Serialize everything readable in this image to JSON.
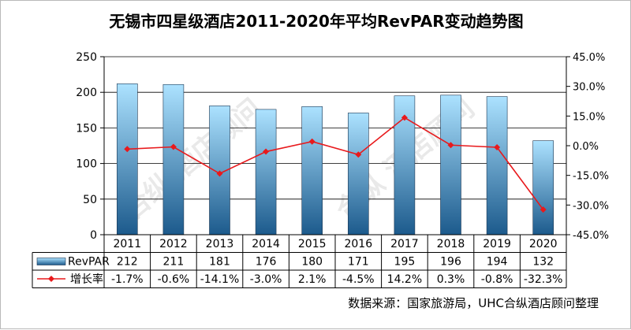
{
  "chart_data": {
    "type": "bar",
    "title": "无锡市四星级酒店2011-2020年平均RevPAR变动趋势图",
    "categories": [
      "2011",
      "2012",
      "2013",
      "2014",
      "2015",
      "2016",
      "2017",
      "2018",
      "2019",
      "2020"
    ],
    "series": [
      {
        "name": "RevPAR",
        "type": "bar",
        "axis": "left",
        "values": [
          212,
          211,
          181,
          176,
          180,
          171,
          195,
          196,
          194,
          132
        ],
        "labels": [
          "212",
          "211",
          "181",
          "176",
          "180",
          "171",
          "195",
          "196",
          "194",
          "132"
        ],
        "colors": {
          "top": "#ace2ff",
          "bottom": "#1c5a8c",
          "edge": "#1a3550"
        }
      },
      {
        "name": "增长率",
        "type": "line",
        "axis": "right",
        "values": [
          -1.7,
          -0.6,
          -14.1,
          -3.0,
          2.1,
          -4.5,
          14.2,
          0.3,
          -0.8,
          -32.3
        ],
        "labels": [
          "-1.7%",
          "-0.6%",
          "-14.1%",
          "-3.0%",
          "2.1%",
          "-4.5%",
          "14.2%",
          "0.3%",
          "-0.8%",
          "-32.3%"
        ],
        "color": "#e8191c"
      }
    ],
    "y_left": {
      "ylim": [
        0,
        250
      ],
      "ticks": [
        0,
        50,
        100,
        150,
        200,
        250
      ],
      "tick_labels": [
        "0",
        "50",
        "100",
        "150",
        "200",
        "250"
      ]
    },
    "y_right": {
      "ylim": [
        -45,
        45
      ],
      "ticks": [
        45,
        30,
        15,
        0,
        -15,
        -30,
        -45
      ],
      "tick_labels": [
        "45.0%",
        "30.0%",
        "15.0%",
        "0.0%",
        "-15.0%",
        "-30.0%",
        "-45.0%"
      ]
    },
    "grid": true,
    "legend": "data-table"
  },
  "source_note": "数据来源：国家旅游局，UHC合纵酒店顾问整理",
  "watermark_text": "合纵 酒店顾问 UNITED HOSPITALITY CONSULTING"
}
